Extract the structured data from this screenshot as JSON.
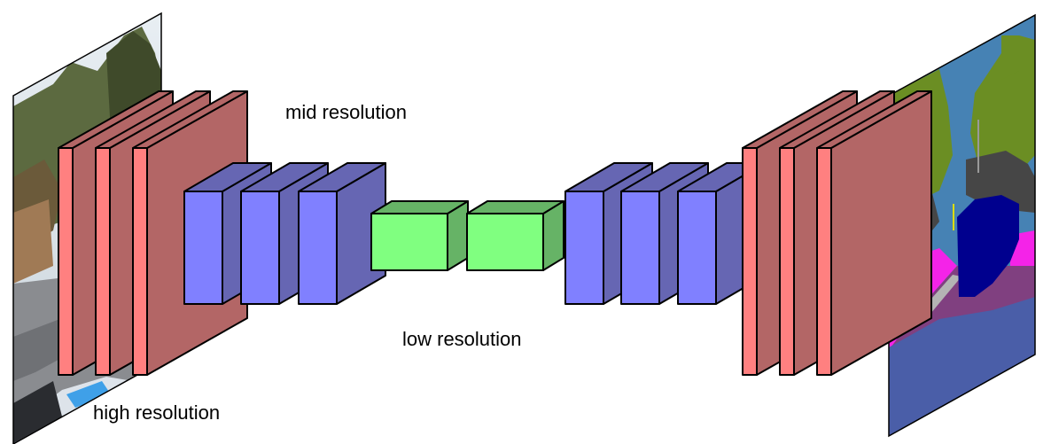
{
  "labels": {
    "mid": "mid resolution",
    "low": "low resolution",
    "high": "high resolution"
  },
  "colors": {
    "high_front": "#ff8080",
    "high_face": "#b36666",
    "mid_front": "#8080ff",
    "mid_face": "#6666b3",
    "low_front": "#80ff80",
    "low_face": "#66b366",
    "outline": "#000000"
  },
  "icons": {
    "input_image": "street-photo-image",
    "output_image": "segmentation-map-image"
  }
}
